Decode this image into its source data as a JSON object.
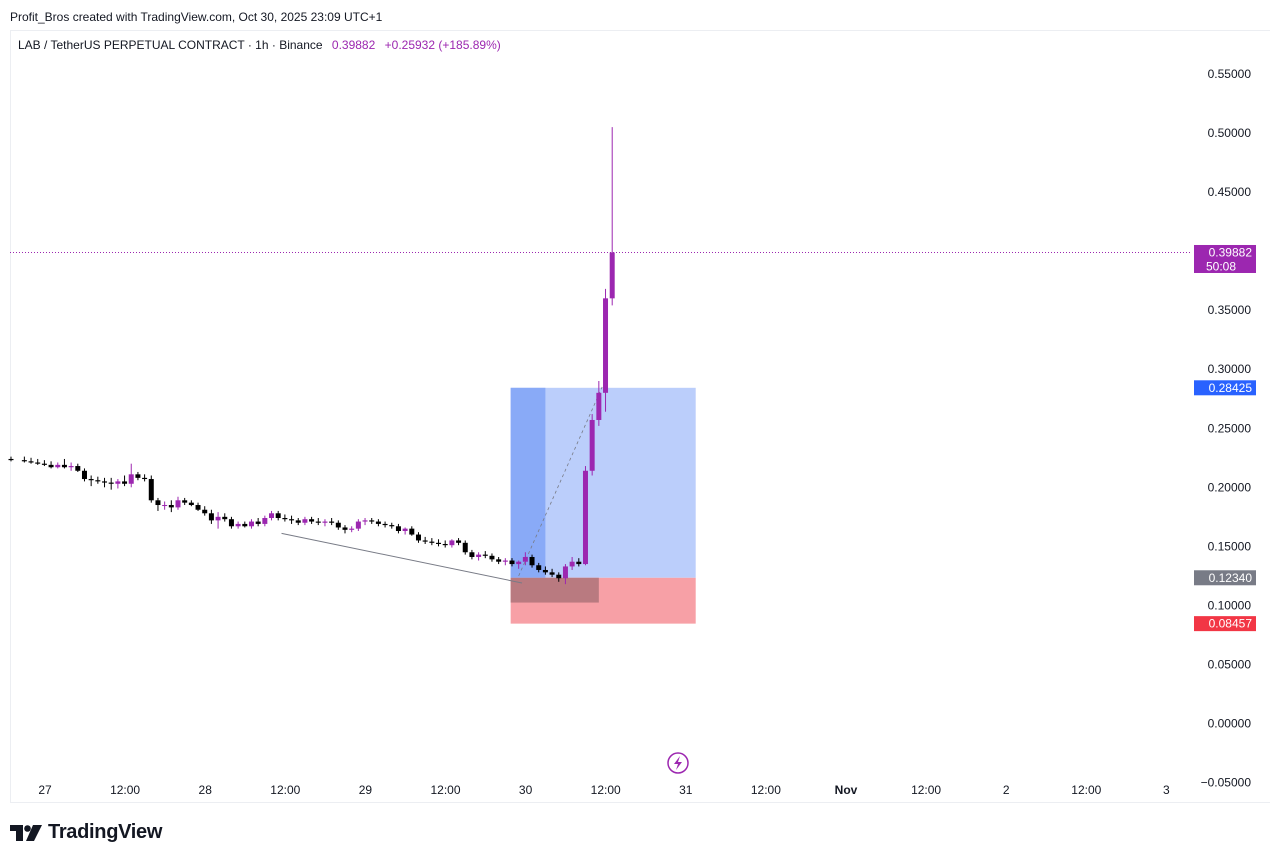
{
  "credit": "Profit_Bros created with TradingView.com, Oct 30, 2025 23:09 UTC+1",
  "legend": {
    "symbol": "LAB / TetherUS PERPETUAL CONTRACT · 1h · Binance",
    "price": "0.39882",
    "change": "+0.25932 (+185.89%)"
  },
  "brand": {
    "name": "TradingView",
    "icon": "tradingview-logo-icon"
  },
  "colors": {
    "candle_up": "#9c27b0",
    "candle_down": "#000000",
    "target_zone": "#bbcefb",
    "target_zone_active": "#89aaf7",
    "stop_zone": "#f7a0a6",
    "stop_zone_active": "#b97a80",
    "entry_badge": "#787b86",
    "stop_badge": "#f23645",
    "target_badge": "#2962ff",
    "price_badge": "#9c27b0"
  },
  "chart_data": {
    "type": "candlestick",
    "x_ticks": [
      "27",
      "12:00",
      "28",
      "12:00",
      "29",
      "12:00",
      "30",
      "12:00",
      "31",
      "12:00",
      "Nov",
      "12:00",
      "2",
      "12:00",
      "3"
    ],
    "x_tick_bold": [
      false,
      false,
      false,
      false,
      false,
      false,
      false,
      false,
      false,
      false,
      true,
      false,
      false,
      false,
      false
    ],
    "y_ticks": [
      "0.55000",
      "0.50000",
      "0.45000",
      "0.35000",
      "0.30000",
      "0.25000",
      "0.20000",
      "0.15000",
      "0.10000",
      "0.05000",
      "0.00000",
      "−0.05000"
    ],
    "y_tick_values": [
      0.55,
      0.5,
      0.45,
      0.35,
      0.3,
      0.25,
      0.2,
      0.15,
      0.1,
      0.05,
      0.0,
      -0.05
    ],
    "ylim": [
      -0.0673,
      0.5872
    ],
    "last_price": {
      "value": 0.39882,
      "label": "0.39882",
      "countdown": "50:08"
    },
    "position": {
      "type": "long",
      "entry": {
        "value": 0.1234,
        "label": "0.12340"
      },
      "target": {
        "value": 0.28425,
        "label": "0.28425"
      },
      "stop": {
        "value": 0.08457,
        "label": "0.08457"
      },
      "start_hour": 74.8,
      "end_hour": 102.5,
      "active_end_hour": 80.0,
      "active_low": 0.1024
    },
    "trendline": {
      "from": {
        "hour": 40.5,
        "value": 0.161
      },
      "to": {
        "hour": 76.5,
        "value": 0.119
      }
    },
    "candles": [
      {
        "t": 0.0,
        "o": 0.224,
        "h": 0.226,
        "l": 0.222,
        "c": 0.223
      },
      {
        "t": 2.0,
        "o": 0.223,
        "h": 0.226,
        "l": 0.221,
        "c": 0.222
      },
      {
        "t": 3.0,
        "o": 0.222,
        "h": 0.225,
        "l": 0.22,
        "c": 0.221
      },
      {
        "t": 4.0,
        "o": 0.221,
        "h": 0.224,
        "l": 0.219,
        "c": 0.22
      },
      {
        "t": 5.0,
        "o": 0.22,
        "h": 0.223,
        "l": 0.218,
        "c": 0.219
      },
      {
        "t": 6.0,
        "o": 0.219,
        "h": 0.222,
        "l": 0.216,
        "c": 0.217
      },
      {
        "t": 7.0,
        "o": 0.217,
        "h": 0.221,
        "l": 0.216,
        "c": 0.219
      },
      {
        "t": 8.0,
        "o": 0.219,
        "h": 0.224,
        "l": 0.216,
        "c": 0.217
      },
      {
        "t": 9.0,
        "o": 0.217,
        "h": 0.221,
        "l": 0.214,
        "c": 0.218
      },
      {
        "t": 10.0,
        "o": 0.218,
        "h": 0.22,
        "l": 0.213,
        "c": 0.214
      },
      {
        "t": 11.0,
        "o": 0.214,
        "h": 0.216,
        "l": 0.205,
        "c": 0.207
      },
      {
        "t": 12.0,
        "o": 0.207,
        "h": 0.21,
        "l": 0.201,
        "c": 0.206
      },
      {
        "t": 13.0,
        "o": 0.206,
        "h": 0.209,
        "l": 0.203,
        "c": 0.205
      },
      {
        "t": 14.0,
        "o": 0.205,
        "h": 0.208,
        "l": 0.2,
        "c": 0.204
      },
      {
        "t": 15.0,
        "o": 0.204,
        "h": 0.208,
        "l": 0.198,
        "c": 0.203
      },
      {
        "t": 16.0,
        "o": 0.203,
        "h": 0.207,
        "l": 0.199,
        "c": 0.205
      },
      {
        "t": 17.0,
        "o": 0.205,
        "h": 0.21,
        "l": 0.201,
        "c": 0.203
      },
      {
        "t": 18.0,
        "o": 0.203,
        "h": 0.22,
        "l": 0.2,
        "c": 0.211
      },
      {
        "t": 19.0,
        "o": 0.211,
        "h": 0.213,
        "l": 0.206,
        "c": 0.208
      },
      {
        "t": 20.0,
        "o": 0.208,
        "h": 0.211,
        "l": 0.205,
        "c": 0.207
      },
      {
        "t": 21.0,
        "o": 0.207,
        "h": 0.21,
        "l": 0.187,
        "c": 0.189
      },
      {
        "t": 22.0,
        "o": 0.189,
        "h": 0.191,
        "l": 0.18,
        "c": 0.185
      },
      {
        "t": 23.0,
        "o": 0.185,
        "h": 0.188,
        "l": 0.181,
        "c": 0.185
      },
      {
        "t": 24.0,
        "o": 0.185,
        "h": 0.189,
        "l": 0.179,
        "c": 0.183
      },
      {
        "t": 25.0,
        "o": 0.183,
        "h": 0.192,
        "l": 0.181,
        "c": 0.189
      },
      {
        "t": 26.0,
        "o": 0.189,
        "h": 0.191,
        "l": 0.185,
        "c": 0.187
      },
      {
        "t": 27.0,
        "o": 0.187,
        "h": 0.189,
        "l": 0.184,
        "c": 0.185
      },
      {
        "t": 28.0,
        "o": 0.185,
        "h": 0.187,
        "l": 0.18,
        "c": 0.181
      },
      {
        "t": 29.0,
        "o": 0.181,
        "h": 0.184,
        "l": 0.176,
        "c": 0.178
      },
      {
        "t": 30.0,
        "o": 0.178,
        "h": 0.181,
        "l": 0.169,
        "c": 0.172
      },
      {
        "t": 31.0,
        "o": 0.172,
        "h": 0.179,
        "l": 0.165,
        "c": 0.175
      },
      {
        "t": 32.0,
        "o": 0.175,
        "h": 0.178,
        "l": 0.171,
        "c": 0.173
      },
      {
        "t": 33.0,
        "o": 0.173,
        "h": 0.175,
        "l": 0.165,
        "c": 0.167
      },
      {
        "t": 34.0,
        "o": 0.167,
        "h": 0.171,
        "l": 0.165,
        "c": 0.169
      },
      {
        "t": 35.0,
        "o": 0.169,
        "h": 0.171,
        "l": 0.166,
        "c": 0.167
      },
      {
        "t": 36.0,
        "o": 0.167,
        "h": 0.173,
        "l": 0.165,
        "c": 0.171
      },
      {
        "t": 37.0,
        "o": 0.171,
        "h": 0.174,
        "l": 0.167,
        "c": 0.169
      },
      {
        "t": 38.0,
        "o": 0.169,
        "h": 0.176,
        "l": 0.167,
        "c": 0.174
      },
      {
        "t": 39.0,
        "o": 0.174,
        "h": 0.18,
        "l": 0.172,
        "c": 0.178
      },
      {
        "t": 40.0,
        "o": 0.178,
        "h": 0.18,
        "l": 0.172,
        "c": 0.174
      },
      {
        "t": 41.0,
        "o": 0.174,
        "h": 0.177,
        "l": 0.171,
        "c": 0.173
      },
      {
        "t": 42.0,
        "o": 0.173,
        "h": 0.176,
        "l": 0.169,
        "c": 0.172
      },
      {
        "t": 43.0,
        "o": 0.172,
        "h": 0.174,
        "l": 0.168,
        "c": 0.17
      },
      {
        "t": 44.0,
        "o": 0.17,
        "h": 0.175,
        "l": 0.168,
        "c": 0.173
      },
      {
        "t": 45.0,
        "o": 0.173,
        "h": 0.175,
        "l": 0.169,
        "c": 0.171
      },
      {
        "t": 46.0,
        "o": 0.171,
        "h": 0.174,
        "l": 0.168,
        "c": 0.17
      },
      {
        "t": 47.0,
        "o": 0.17,
        "h": 0.173,
        "l": 0.167,
        "c": 0.171
      },
      {
        "t": 48.0,
        "o": 0.171,
        "h": 0.174,
        "l": 0.168,
        "c": 0.17
      },
      {
        "t": 49.0,
        "o": 0.17,
        "h": 0.172,
        "l": 0.164,
        "c": 0.166
      },
      {
        "t": 50.0,
        "o": 0.166,
        "h": 0.168,
        "l": 0.161,
        "c": 0.164
      },
      {
        "t": 51.0,
        "o": 0.164,
        "h": 0.167,
        "l": 0.162,
        "c": 0.165
      },
      {
        "t": 52.0,
        "o": 0.165,
        "h": 0.173,
        "l": 0.163,
        "c": 0.171
      },
      {
        "t": 53.0,
        "o": 0.171,
        "h": 0.174,
        "l": 0.168,
        "c": 0.172
      },
      {
        "t": 54.0,
        "o": 0.172,
        "h": 0.174,
        "l": 0.169,
        "c": 0.171
      },
      {
        "t": 55.0,
        "o": 0.171,
        "h": 0.173,
        "l": 0.167,
        "c": 0.169
      },
      {
        "t": 56.0,
        "o": 0.169,
        "h": 0.171,
        "l": 0.166,
        "c": 0.168
      },
      {
        "t": 57.0,
        "o": 0.168,
        "h": 0.17,
        "l": 0.165,
        "c": 0.167
      },
      {
        "t": 58.0,
        "o": 0.167,
        "h": 0.169,
        "l": 0.161,
        "c": 0.163
      },
      {
        "t": 59.0,
        "o": 0.163,
        "h": 0.166,
        "l": 0.16,
        "c": 0.165
      },
      {
        "t": 60.0,
        "o": 0.165,
        "h": 0.167,
        "l": 0.159,
        "c": 0.16
      },
      {
        "t": 61.0,
        "o": 0.16,
        "h": 0.162,
        "l": 0.153,
        "c": 0.155
      },
      {
        "t": 62.0,
        "o": 0.155,
        "h": 0.158,
        "l": 0.152,
        "c": 0.154
      },
      {
        "t": 63.0,
        "o": 0.154,
        "h": 0.157,
        "l": 0.151,
        "c": 0.153
      },
      {
        "t": 64.0,
        "o": 0.153,
        "h": 0.156,
        "l": 0.15,
        "c": 0.152
      },
      {
        "t": 65.0,
        "o": 0.152,
        "h": 0.155,
        "l": 0.149,
        "c": 0.151
      },
      {
        "t": 66.0,
        "o": 0.151,
        "h": 0.156,
        "l": 0.149,
        "c": 0.155
      },
      {
        "t": 67.0,
        "o": 0.155,
        "h": 0.157,
        "l": 0.151,
        "c": 0.153
      },
      {
        "t": 68.0,
        "o": 0.153,
        "h": 0.155,
        "l": 0.143,
        "c": 0.145
      },
      {
        "t": 69.0,
        "o": 0.145,
        "h": 0.147,
        "l": 0.139,
        "c": 0.141
      },
      {
        "t": 70.0,
        "o": 0.141,
        "h": 0.145,
        "l": 0.138,
        "c": 0.143
      },
      {
        "t": 71.0,
        "o": 0.143,
        "h": 0.146,
        "l": 0.14,
        "c": 0.142
      },
      {
        "t": 72.0,
        "o": 0.142,
        "h": 0.144,
        "l": 0.137,
        "c": 0.139
      },
      {
        "t": 73.0,
        "o": 0.139,
        "h": 0.141,
        "l": 0.135,
        "c": 0.137
      },
      {
        "t": 74.0,
        "o": 0.137,
        "h": 0.14,
        "l": 0.134,
        "c": 0.138
      },
      {
        "t": 75.0,
        "o": 0.138,
        "h": 0.14,
        "l": 0.133,
        "c": 0.135
      },
      {
        "t": 76.0,
        "o": 0.135,
        "h": 0.138,
        "l": 0.131,
        "c": 0.137
      },
      {
        "t": 77.0,
        "o": 0.137,
        "h": 0.145,
        "l": 0.134,
        "c": 0.141
      },
      {
        "t": 78.0,
        "o": 0.141,
        "h": 0.143,
        "l": 0.132,
        "c": 0.134
      },
      {
        "t": 79.0,
        "o": 0.134,
        "h": 0.136,
        "l": 0.128,
        "c": 0.13
      },
      {
        "t": 80.0,
        "o": 0.13,
        "h": 0.133,
        "l": 0.126,
        "c": 0.128
      },
      {
        "t": 81.0,
        "o": 0.128,
        "h": 0.131,
        "l": 0.124,
        "c": 0.126
      },
      {
        "t": 82.0,
        "o": 0.126,
        "h": 0.128,
        "l": 0.12,
        "c": 0.123
      },
      {
        "t": 83.0,
        "o": 0.123,
        "h": 0.135,
        "l": 0.118,
        "c": 0.133
      },
      {
        "t": 84.0,
        "o": 0.133,
        "h": 0.141,
        "l": 0.13,
        "c": 0.137
      },
      {
        "t": 85.0,
        "o": 0.137,
        "h": 0.14,
        "l": 0.133,
        "c": 0.135
      },
      {
        "t": 86.0,
        "o": 0.135,
        "h": 0.218,
        "l": 0.134,
        "c": 0.214
      },
      {
        "t": 87.0,
        "o": 0.214,
        "h": 0.262,
        "l": 0.21,
        "c": 0.257
      },
      {
        "t": 88.0,
        "o": 0.257,
        "h": 0.29,
        "l": 0.252,
        "c": 0.28
      },
      {
        "t": 89.0,
        "o": 0.28,
        "h": 0.368,
        "l": 0.264,
        "c": 0.36
      },
      {
        "t": 90.0,
        "o": 0.36,
        "h": 0.505,
        "l": 0.354,
        "c": 0.39882
      }
    ]
  }
}
